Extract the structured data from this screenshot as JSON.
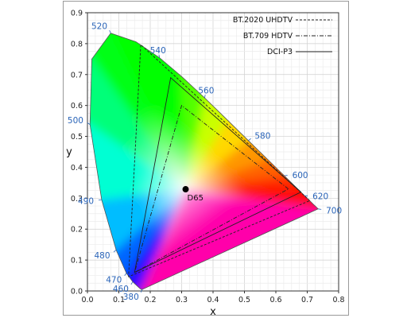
{
  "chart_data": {
    "type": "scatter",
    "x_axis": {
      "label": "x",
      "range": [
        0.0,
        0.8
      ],
      "ticks": [
        "0.0",
        "0.1",
        "0.2",
        "0.3",
        "0.4",
        "0.5",
        "0.6",
        "0.7",
        "0.8"
      ]
    },
    "y_axis": {
      "label": "y",
      "range": [
        0.0,
        0.9
      ],
      "ticks": [
        "0.0",
        "0.1",
        "0.2",
        "0.3",
        "0.4",
        "0.5",
        "0.6",
        "0.7",
        "0.8",
        "0.9"
      ]
    },
    "grid": true,
    "spectral_locus": [
      {
        "x": 0.1741,
        "y": 0.005
      },
      {
        "x": 0.1738,
        "y": 0.0049
      },
      {
        "x": 0.173,
        "y": 0.0048
      },
      {
        "x": 0.1714,
        "y": 0.0051
      },
      {
        "x": 0.1689,
        "y": 0.0069
      },
      {
        "x": 0.1644,
        "y": 0.0109
      },
      {
        "x": 0.1566,
        "y": 0.0177
      },
      {
        "x": 0.144,
        "y": 0.0297
      },
      {
        "x": 0.1241,
        "y": 0.0578
      },
      {
        "x": 0.0913,
        "y": 0.1327
      },
      {
        "x": 0.0454,
        "y": 0.295
      },
      {
        "x": 0.0082,
        "y": 0.5384
      },
      {
        "x": 0.0139,
        "y": 0.7502
      },
      {
        "x": 0.0743,
        "y": 0.8338
      },
      {
        "x": 0.1547,
        "y": 0.8059
      },
      {
        "x": 0.2296,
        "y": 0.7543
      },
      {
        "x": 0.3016,
        "y": 0.6923
      },
      {
        "x": 0.3731,
        "y": 0.6245
      },
      {
        "x": 0.4441,
        "y": 0.5547
      },
      {
        "x": 0.5125,
        "y": 0.4866
      },
      {
        "x": 0.5752,
        "y": 0.4242
      },
      {
        "x": 0.627,
        "y": 0.3725
      },
      {
        "x": 0.6658,
        "y": 0.334
      },
      {
        "x": 0.6915,
        "y": 0.3083
      },
      {
        "x": 0.7079,
        "y": 0.292
      },
      {
        "x": 0.719,
        "y": 0.2809
      },
      {
        "x": 0.726,
        "y": 0.274
      },
      {
        "x": 0.7347,
        "y": 0.2653
      }
    ],
    "wavelength_labels": [
      {
        "label": "380",
        "x": 0.1741,
        "y": 0.005
      },
      {
        "label": "460",
        "x": 0.144,
        "y": 0.0297
      },
      {
        "label": "470",
        "x": 0.1241,
        "y": 0.0578
      },
      {
        "label": "480",
        "x": 0.0913,
        "y": 0.1327
      },
      {
        "label": "490",
        "x": 0.0454,
        "y": 0.295
      },
      {
        "label": "500",
        "x": 0.0082,
        "y": 0.5384
      },
      {
        "label": "520",
        "x": 0.0743,
        "y": 0.8338
      },
      {
        "label": "540",
        "x": 0.2296,
        "y": 0.7543
      },
      {
        "label": "560",
        "x": 0.3731,
        "y": 0.6245
      },
      {
        "label": "580",
        "x": 0.5125,
        "y": 0.4866
      },
      {
        "label": "600",
        "x": 0.627,
        "y": 0.3725
      },
      {
        "label": "620",
        "x": 0.6915,
        "y": 0.3083
      },
      {
        "label": "700",
        "x": 0.7347,
        "y": 0.2653
      }
    ],
    "series": [
      {
        "name": "BT.2020 UHDTV",
        "style": "dashed",
        "points": [
          {
            "x": 0.708,
            "y": 0.292
          },
          {
            "x": 0.17,
            "y": 0.797
          },
          {
            "x": 0.131,
            "y": 0.046
          }
        ]
      },
      {
        "name": "BT.709 HDTV",
        "style": "dashdot",
        "points": [
          {
            "x": 0.64,
            "y": 0.33
          },
          {
            "x": 0.3,
            "y": 0.6
          },
          {
            "x": 0.15,
            "y": 0.06
          }
        ]
      },
      {
        "name": "DCI-P3",
        "style": "solid",
        "points": [
          {
            "x": 0.68,
            "y": 0.32
          },
          {
            "x": 0.265,
            "y": 0.69
          },
          {
            "x": 0.15,
            "y": 0.06
          }
        ]
      }
    ],
    "white_point": {
      "label": "D65",
      "x": 0.3127,
      "y": 0.329
    },
    "legend": {
      "position": "top-right"
    }
  }
}
